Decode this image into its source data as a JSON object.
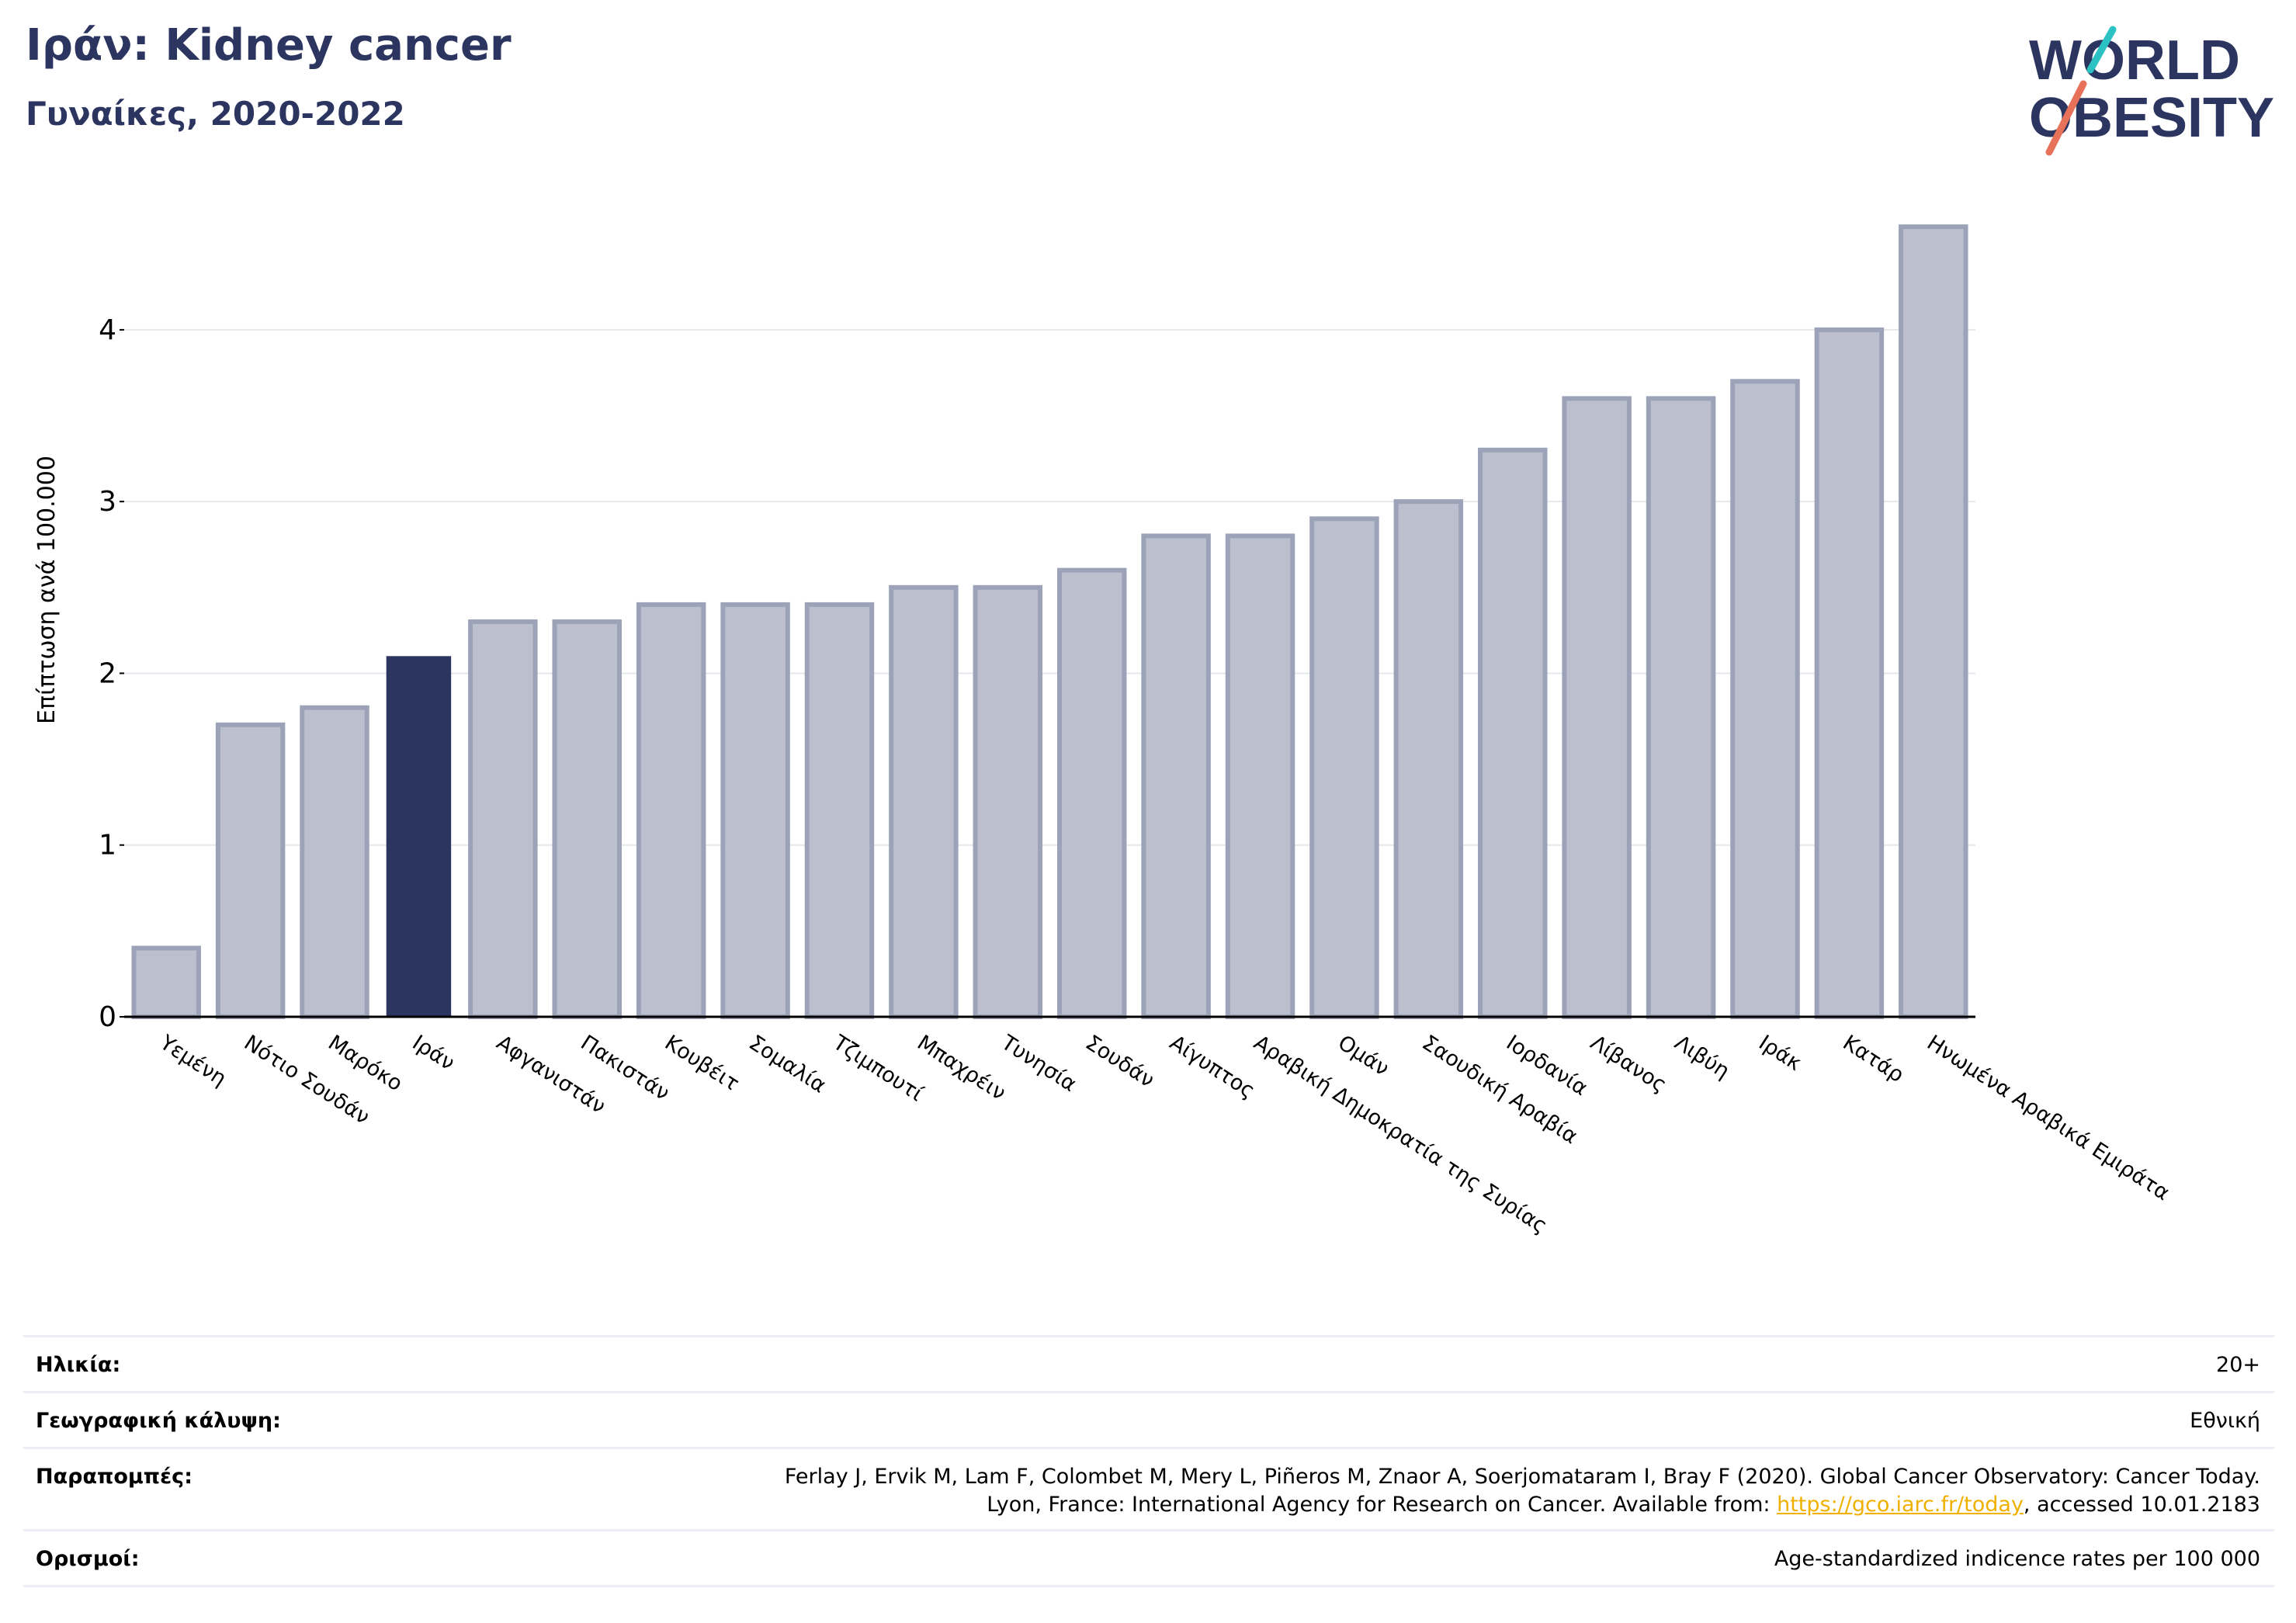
{
  "header": {
    "title": "Ιράν: Kidney cancer",
    "subtitle": "Γυναίκες, 2020-2022"
  },
  "logo": {
    "line1": "WORLD",
    "line2": "OBESITY"
  },
  "colors": {
    "brand_navy": "#2b3560",
    "bar_muted": "#bcc0ce",
    "bar_muted_stroke": "#9ca2b8",
    "logo_teal": "#2cc2c4",
    "logo_coral": "#e8715a",
    "link": "#f0b000"
  },
  "chart_data": {
    "type": "bar",
    "title": "Ιράν: Kidney cancer",
    "subtitle": "Γυναίκες, 2020-2022",
    "xlabel": "",
    "ylabel": "Επίπτωση ανά 100.000",
    "ylim": [
      0,
      4.7
    ],
    "yticks": [
      0,
      1,
      2,
      3,
      4
    ],
    "grid": true,
    "highlight": "Ιράν",
    "categories": [
      "Υεμένη",
      "Νότιο Σουδάν",
      "Μαρόκο",
      "Ιράν",
      "Αφγανιστάν",
      "Πακιστάν",
      "Κουβέιτ",
      "Σομαλία",
      "Τζιμπουτί",
      "Μπαχρέιν",
      "Τυνησία",
      "Σουδάν",
      "Αίγυπτος",
      "Αραβική Δημοκρατία της Συρίας",
      "Ομάν",
      "Σαουδική Αραβία",
      "Ιορδανία",
      "Λίβανος",
      "Λιβύη",
      "Ιράκ",
      "Κατάρ",
      "Ηνωμένα Αραβικά Εμιράτα"
    ],
    "values": [
      0.4,
      1.7,
      1.8,
      2.1,
      2.3,
      2.3,
      2.4,
      2.4,
      2.4,
      2.5,
      2.5,
      2.6,
      2.8,
      2.8,
      2.9,
      3.0,
      3.3,
      3.6,
      3.6,
      3.7,
      4.0,
      4.6
    ]
  },
  "meta": {
    "age_label": "Ηλικία:",
    "age_value": "20+",
    "coverage_label": "Γεωγραφική κάλυψη:",
    "coverage_value": "Εθνική",
    "refs_label": "Παραπομπές:",
    "refs_line1": "Ferlay J, Ervik M, Lam F, Colombet M, Mery L, Piñeros M, Znaor A, Soerjomataram I, Bray F (2020). Global Cancer Observatory: Cancer Today.",
    "refs_line2_prefix": "Lyon, France: International Agency for Research on Cancer. Available from: ",
    "refs_link": "https://gco.iarc.fr/today",
    "refs_line2_suffix": ", accessed 10.01.2183",
    "defs_label": "Ορισμοί:",
    "defs_value": "Age-standardized indicence rates per 100 000"
  }
}
